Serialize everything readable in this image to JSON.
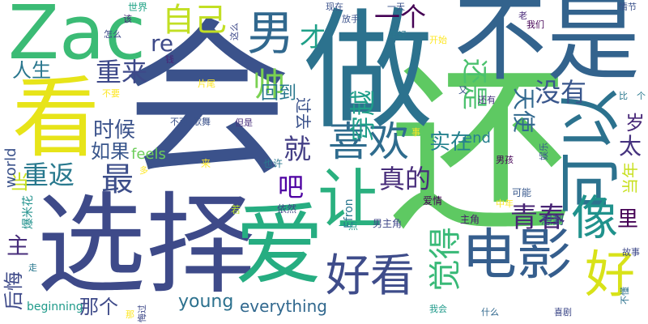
{
  "words": [
    {
      "text": "会",
      "color": "#3b528b"
    },
    {
      "text": "还",
      "color": "#5ec962"
    },
    {
      "text": "选择",
      "color": "#3e4a89"
    },
    {
      "text": "做",
      "color": "#2c728e"
    },
    {
      "text": "不是",
      "color": "#33638d"
    },
    {
      "text": "Zac",
      "color": "#3bbb75"
    },
    {
      "text": "看",
      "color": "#e7e419"
    },
    {
      "text": "爱",
      "color": "#26ad81"
    },
    {
      "text": "让",
      "color": "#2ab07f"
    },
    {
      "text": "电影",
      "color": "#355e8d"
    },
    {
      "text": "好看",
      "color": "#3e4c8a"
    },
    {
      "text": "可以",
      "color": "#2c728e"
    },
    {
      "text": "好",
      "color": "#d8e219"
    },
    {
      "text": "像",
      "color": "#20928c"
    },
    {
      "text": "男",
      "color": "#31688e"
    },
    {
      "text": "喜欢",
      "color": "#2f6c8e"
    },
    {
      "text": "自己",
      "color": "#c2df23"
    },
    {
      "text": "最",
      "color": "#3d4e8a"
    },
    {
      "text": "青春",
      "color": "#482475"
    },
    {
      "text": "觉得",
      "color": "#38b977"
    },
    {
      "text": "重返",
      "color": "#29798e"
    },
    {
      "text": "重来",
      "color": "#3e4989"
    },
    {
      "text": "帅",
      "color": "#7ad151"
    },
    {
      "text": "穿越",
      "color": "#1f9e89"
    },
    {
      "text": "一个",
      "color": "#440154"
    },
    {
      "text": "还是",
      "color": "#4ac16d"
    },
    {
      "text": "真的",
      "color": "#472c7a"
    },
    {
      "text": "就",
      "color": "#433e85"
    },
    {
      "text": "吧",
      "color": "#4e02a2"
    },
    {
      "text": "如果",
      "color": "#39568c"
    },
    {
      "text": "时候",
      "color": "#3b528b"
    },
    {
      "text": "天使",
      "color": "#31688e"
    },
    {
      "text": "没有",
      "color": "#39568c"
    },
    {
      "text": "实在",
      "color": "#26828e"
    },
    {
      "text": "re",
      "color": "#3e4a89"
    },
    {
      "text": "人生",
      "color": "#2a778e"
    },
    {
      "text": "回到",
      "color": "#2a788e"
    },
    {
      "text": "过去",
      "color": "#3b528b"
    },
    {
      "text": "才",
      "color": "#1fa088"
    },
    {
      "text": "后悔",
      "color": "#3e4a89"
    },
    {
      "text": "主",
      "color": "#472d7b"
    },
    {
      "text": "当",
      "color": "#c8e020"
    },
    {
      "text": "那个",
      "color": "#3e4a89"
    },
    {
      "text": "young",
      "color": "#2c718e"
    },
    {
      "text": "everything",
      "color": "#31688e"
    },
    {
      "text": "里",
      "color": "#440154"
    },
    {
      "text": "太",
      "color": "#46337f"
    },
    {
      "text": "岁",
      "color": "#482878"
    },
    {
      "text": "当年",
      "color": "#c8e020"
    },
    {
      "text": "end",
      "color": "#277f8e"
    },
    {
      "text": "feels",
      "color": "#6ccd5a"
    },
    {
      "text": "world",
      "color": "#3b528b"
    },
    {
      "text": "beginning",
      "color": "#1f9a8a"
    },
    {
      "text": "Efron",
      "color": "#2a778e"
    },
    {
      "text": "爱情",
      "color": "#440154"
    },
    {
      "text": "男主角",
      "color": "#3f4788"
    },
    {
      "text": "主角",
      "color": "#481a6c"
    },
    {
      "text": "想到",
      "color": "#3a548c"
    },
    {
      "text": "可能",
      "color": "#38588c"
    },
    {
      "text": "中年",
      "color": "#fde725"
    },
    {
      "text": "一点",
      "color": "#1f9e89"
    },
    {
      "text": "依然",
      "color": "#3f4788"
    },
    {
      "text": "若",
      "color": "#b5de2b"
    },
    {
      "text": "爆米花",
      "color": "#21918c"
    },
    {
      "text": "走",
      "color": "#2a788e"
    },
    {
      "text": "也许",
      "color": "#2a788e"
    },
    {
      "text": "来",
      "color": "#fde725"
    },
    {
      "text": "多",
      "color": "#fde725"
    },
    {
      "text": "事",
      "color": "#fde725"
    },
    {
      "text": "男孩",
      "color": "#440154"
    },
    {
      "text": "娱乐",
      "color": "#38588c"
    },
    {
      "text": "故事",
      "color": "#3e4989"
    },
    {
      "text": "不懂",
      "color": "#2c718e"
    },
    {
      "text": "喜剧",
      "color": "#3e4989"
    },
    {
      "text": "什么",
      "color": "#31688e"
    },
    {
      "text": "我会",
      "color": "#1f9a8a"
    },
    {
      "text": "那",
      "color": "#fde725"
    },
    {
      "text": "悔过",
      "color": "#3e4989"
    },
    {
      "text": "歌舞",
      "color": "#3b528b"
    },
    {
      "text": "不可",
      "color": "#3b528b"
    },
    {
      "text": "但是",
      "color": "#472d7b"
    },
    {
      "text": "不要",
      "color": "#fde725"
    },
    {
      "text": "片尾",
      "color": "#fde725"
    },
    {
      "text": "钱",
      "color": "#482475"
    },
    {
      "text": "怎么",
      "color": "#3e4989"
    },
    {
      "text": "该",
      "color": "#482878"
    },
    {
      "text": "世界",
      "color": "#20a386"
    },
    {
      "text": "这么",
      "color": "#3e4989"
    },
    {
      "text": "现在",
      "color": "#3b528b"
    },
    {
      "text": "放手",
      "color": "#3b528b"
    },
    {
      "text": "一天",
      "color": "#3b528b"
    },
    {
      "text": "年轻",
      "color": "#2a788e"
    },
    {
      "text": "开始",
      "color": "#fde725"
    },
    {
      "text": "老",
      "color": "#482878"
    },
    {
      "text": "我们",
      "color": "#440154"
    },
    {
      "text": "情节",
      "color": "#3b528b"
    },
    {
      "text": "又",
      "color": "#3b528b"
    },
    {
      "text": "还有",
      "color": "#46337f"
    },
    {
      "text": "比",
      "color": "#2a788e"
    },
    {
      "text": "个",
      "color": "#2a788e"
    }
  ]
}
